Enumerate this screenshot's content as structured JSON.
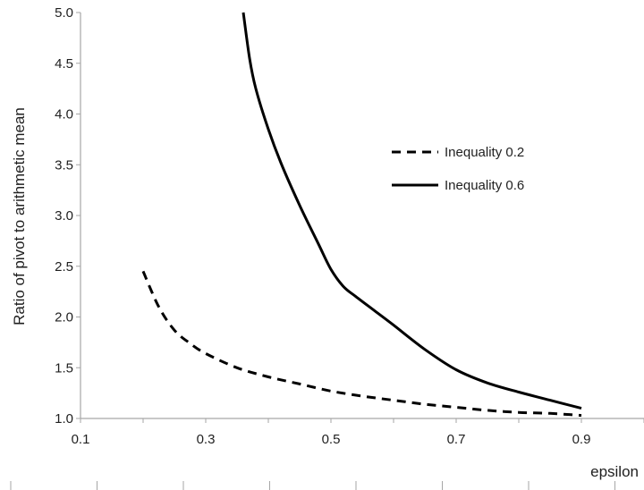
{
  "chart_data": {
    "type": "line",
    "title": "",
    "xlabel": "epsilon",
    "ylabel": "Ratio of pivot to arithmetic mean",
    "xlim": [
      0.1,
      1.0
    ],
    "ylim": [
      1.0,
      5.0
    ],
    "x_ticks": [
      "0.1",
      "0.3",
      "0.5",
      "0.7",
      "0.9"
    ],
    "y_ticks": [
      "1.0",
      "1.5",
      "2.0",
      "2.5",
      "3.0",
      "3.5",
      "4.0",
      "4.5",
      "5.0"
    ],
    "grid": false,
    "legend_position": "right",
    "series": [
      {
        "name": "Inequality 0.2",
        "style": "dashed",
        "color": "#000000",
        "x": [
          0.2,
          0.225,
          0.25,
          0.275,
          0.3,
          0.35,
          0.4,
          0.45,
          0.5,
          0.55,
          0.6,
          0.65,
          0.7,
          0.75,
          0.8,
          0.85,
          0.9
        ],
        "y": [
          2.45,
          2.1,
          1.87,
          1.74,
          1.64,
          1.5,
          1.41,
          1.34,
          1.27,
          1.22,
          1.18,
          1.14,
          1.11,
          1.08,
          1.06,
          1.05,
          1.03
        ]
      },
      {
        "name": "Inequality 0.6",
        "style": "solid",
        "color": "#000000",
        "x": [
          0.36,
          0.37,
          0.38,
          0.4,
          0.42,
          0.45,
          0.48,
          0.5,
          0.52,
          0.54,
          0.57,
          0.6,
          0.65,
          0.7,
          0.75,
          0.8,
          0.85,
          0.9
        ],
        "y": [
          5.0,
          4.55,
          4.25,
          3.85,
          3.52,
          3.1,
          2.72,
          2.47,
          2.3,
          2.2,
          2.06,
          1.92,
          1.68,
          1.48,
          1.35,
          1.26,
          1.18,
          1.1
        ]
      }
    ]
  }
}
